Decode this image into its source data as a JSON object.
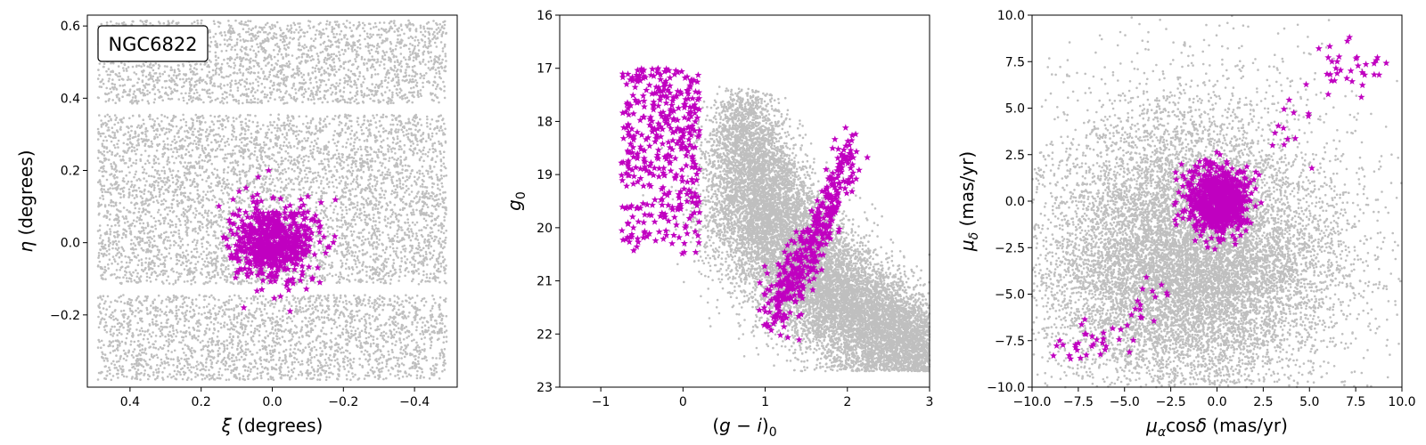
{
  "figure": {
    "panels": [
      {
        "id": "sky",
        "annotation": "NGC6822",
        "xlabel": {
          "italic": "ξ",
          "rest": " (degrees)"
        },
        "ylabel": {
          "italic": "η",
          "rest": " (degrees)"
        }
      },
      {
        "id": "cmd",
        "xlabel": {
          "pre": "(",
          "italic": "g",
          "mid": " − ",
          "italic2": "i",
          "post": ")",
          "sub": "0"
        },
        "ylabel": {
          "italic": "g",
          "sub": "0"
        }
      },
      {
        "id": "pm",
        "xlabel": {
          "mu": "μ",
          "mu_sub": "α",
          "cos": "cos",
          "delta": "δ",
          "rest": " (mas/yr)"
        },
        "ylabel": {
          "mu": "μ",
          "mu_sub": "δ",
          "rest": " (mas/yr)"
        }
      }
    ]
  },
  "chart_data": [
    {
      "type": "scatter",
      "title": "",
      "annotation": "NGC6822",
      "xlabel": "ξ (degrees)",
      "ylabel": "η (degrees)",
      "xlim": [
        0.52,
        -0.52
      ],
      "ylim": [
        -0.4,
        0.63
      ],
      "x_ticks": [
        0.4,
        0.2,
        0.0,
        -0.2,
        -0.4
      ],
      "x_tick_labels": [
        "0.4",
        "0.2",
        "0.0",
        "−0.2",
        "−0.4"
      ],
      "y_ticks": [
        -0.2,
        0.0,
        0.2,
        0.4,
        0.6
      ],
      "y_tick_labels": [
        "−0.2",
        "0.0",
        "0.2",
        "0.4",
        "0.6"
      ],
      "series": [
        {
          "marker": "dot",
          "color": "#bfbfbf",
          "distribution": "uniform field with two empty horizontal gaps",
          "x_range": [
            -0.49,
            0.49
          ],
          "y_bands": [
            [
              -0.38,
              -0.145
            ],
            [
              -0.115,
              0.355
            ],
            [
              0.385,
              0.615
            ]
          ],
          "count": 9000
        },
        {
          "marker": "star",
          "color": "#c000c0",
          "distribution": "concentrated clump around the galaxy centre",
          "center": [
            0.0,
            0.0
          ],
          "spread": [
            0.055,
            0.055
          ],
          "x_range": [
            -0.2,
            0.15
          ],
          "y_range": [
            -0.2,
            0.2
          ],
          "outliers": [
            [
              0.01,
              0.2
            ],
            [
              -0.05,
              -0.19
            ],
            [
              0.08,
              -0.18
            ]
          ],
          "count": 650
        }
      ],
      "grid": false,
      "legend": "none"
    },
    {
      "type": "scatter",
      "title": "",
      "xlabel": "(g − i)0",
      "ylabel": "g0",
      "xlim": [
        -1.5,
        3.0
      ],
      "ylim": [
        23,
        16
      ],
      "x_ticks": [
        -1,
        0,
        1,
        2,
        3
      ],
      "x_tick_labels": [
        "−1",
        "0",
        "1",
        "2",
        "3"
      ],
      "y_ticks": [
        16,
        17,
        18,
        19,
        20,
        21,
        22,
        23
      ],
      "y_tick_labels": [
        "16",
        "17",
        "18",
        "19",
        "20",
        "21",
        "22",
        "23"
      ],
      "series": [
        {
          "marker": "dot",
          "color": "#bfbfbf",
          "distribution": "dense diagonal colour-magnitude sequence",
          "ridge": [
            [
              0.7,
              17.3
            ],
            [
              0.8,
              18.5
            ],
            [
              1.1,
              20.0
            ],
            [
              1.8,
              21.2
            ],
            [
              3.0,
              22.5
            ]
          ],
          "count": 14000
        },
        {
          "marker": "star",
          "color": "#c000c0",
          "distribution": "blue plume",
          "x_range": [
            -0.75,
            0.2
          ],
          "y_range": [
            17.0,
            20.5
          ],
          "count": 420
        },
        {
          "marker": "star",
          "color": "#c000c0",
          "distribution": "red supergiant branch",
          "ridge": [
            [
              1.1,
              21.4
            ],
            [
              1.5,
              20.6
            ],
            [
              2.0,
              18.8
            ]
          ],
          "extra_points": [
            [
              0.93,
              21.55
            ]
          ],
          "count": 420
        }
      ],
      "grid": false,
      "legend": "none"
    },
    {
      "type": "scatter",
      "title": "",
      "xlabel": "μαcosδ (mas/yr)",
      "ylabel": "μδ (mas/yr)",
      "xlim": [
        -10.0,
        10.0
      ],
      "ylim": [
        -10.0,
        10.0
      ],
      "x_ticks": [
        -10.0,
        -7.5,
        -5.0,
        -2.5,
        0.0,
        2.5,
        5.0,
        7.5,
        10.0
      ],
      "x_tick_labels": [
        "−10.0",
        "−7.5",
        "−5.0",
        "−2.5",
        "0.0",
        "2.5",
        "5.0",
        "7.5",
        "10.0"
      ],
      "y_ticks": [
        -10.0,
        -7.5,
        -5.0,
        -2.5,
        0.0,
        2.5,
        5.0,
        7.5,
        10.0
      ],
      "y_tick_labels": [
        "−10.0",
        "−7.5",
        "−5.0",
        "−2.5",
        "0.0",
        "2.5",
        "5.0",
        "7.5",
        "10.0"
      ],
      "series": [
        {
          "marker": "dot",
          "color": "#bfbfbf",
          "distribution": "broad cloud centred near (-1.5, -5), thinning upward",
          "center": [
            -1.5,
            -5.0
          ],
          "spread": [
            4.0,
            3.0
          ],
          "count": 12000
        },
        {
          "marker": "star",
          "color": "#c000c0",
          "distribution": "tight clump at the origin with a diagonal tail",
          "center": [
            0.0,
            0.0
          ],
          "spread": [
            0.8,
            0.9
          ],
          "tail": [
            [
              -8.5,
              -7.5
            ],
            [
              -6.0,
              -7.8
            ],
            [
              -3.0,
              -4.5
            ],
            [
              3.0,
              3.0
            ],
            [
              6.5,
              7.5
            ],
            [
              8.5,
              6.8
            ]
          ],
          "count": 750
        }
      ],
      "grid": false,
      "legend": "none"
    }
  ]
}
